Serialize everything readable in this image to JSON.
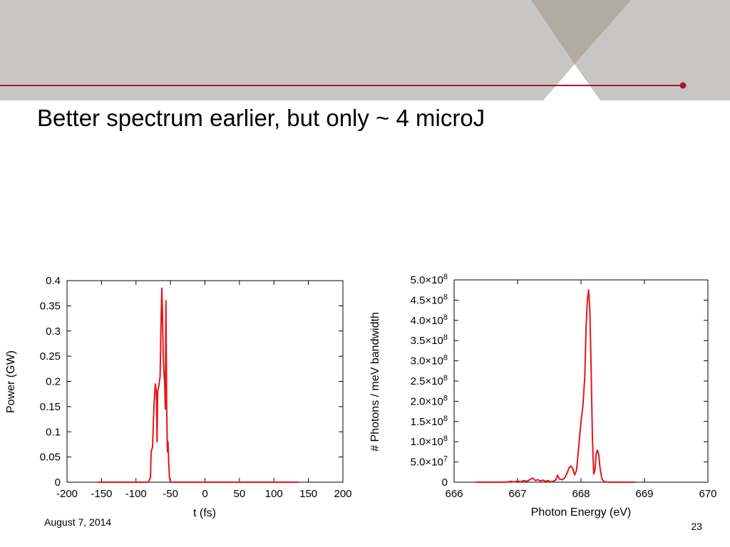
{
  "theme": {
    "accent": "#a6192e",
    "header_gray": "#c8c6c3",
    "header_taupe": "#b2aba1"
  },
  "slide": {
    "title": "Better spectrum earlier, but only ~ 4 microJ",
    "date": "August 7, 2014",
    "page_number": "23"
  },
  "chart_data": [
    {
      "type": "line",
      "xlabel": "t (fs)",
      "ylabel": "Power (GW)",
      "xlim": [
        -200,
        200
      ],
      "ylim": [
        0,
        0.4
      ],
      "x_ticks": [
        -200,
        -150,
        -100,
        -50,
        0,
        50,
        100,
        150,
        200
      ],
      "x_tick_labels": [
        "-200",
        "-150",
        "-100",
        "-50",
        "0",
        "50",
        "100",
        "150",
        "200"
      ],
      "y_ticks": [
        0,
        0.05,
        0.1,
        0.15,
        0.2,
        0.25,
        0.3,
        0.35,
        0.4
      ],
      "y_tick_labels": [
        "0",
        "0.05",
        "0.1",
        "0.15",
        "0.2",
        "0.25",
        "0.3",
        "0.35",
        "0.4"
      ],
      "grid": false,
      "series": [
        {
          "color": "#e3161b",
          "x": [
            -155,
            -100,
            -82,
            -79,
            -78,
            -76,
            -74,
            -72,
            -70.5,
            -69.5,
            -68.5,
            -67,
            -65,
            -63.5,
            -62.5,
            -61.5,
            -60.5,
            -59.5,
            -58.5,
            -57.5,
            -56.5,
            -55.5,
            -54.5,
            -53.5,
            -52.5,
            -51.5,
            -50,
            0,
            50,
            100,
            135
          ],
          "y": [
            0,
            0,
            0,
            0.01,
            0.06,
            0.07,
            0.15,
            0.195,
            0.18,
            0.08,
            0.18,
            0.19,
            0.21,
            0.33,
            0.385,
            0.33,
            0.25,
            0.22,
            0.2,
            0.145,
            0.36,
            0.15,
            0.06,
            0.08,
            0.04,
            0.01,
            0,
            0,
            0,
            0,
            0
          ]
        }
      ]
    },
    {
      "type": "line",
      "xlabel": "Photon Energy (eV)",
      "ylabel": "# Photons / meV bandwidth",
      "xlim": [
        666,
        670
      ],
      "ylim": [
        0,
        500000000
      ],
      "x_ticks": [
        666,
        667,
        668,
        669,
        670
      ],
      "x_tick_labels": [
        "666",
        "667",
        "668",
        "669",
        "670"
      ],
      "y_ticks": [
        0,
        50000000,
        100000000,
        150000000,
        200000000,
        250000000,
        300000000,
        350000000,
        400000000,
        450000000,
        500000000
      ],
      "y_tick_labels": [
        {
          "base": "0",
          "exp": ""
        },
        {
          "base": "5.0×10",
          "exp": "7"
        },
        {
          "base": "1.0×10",
          "exp": "8"
        },
        {
          "base": "1.5×10",
          "exp": "8"
        },
        {
          "base": "2.0×10",
          "exp": "8"
        },
        {
          "base": "2.5×10",
          "exp": "8"
        },
        {
          "base": "3.0×10",
          "exp": "8"
        },
        {
          "base": "3.5×10",
          "exp": "8"
        },
        {
          "base": "4.0×10",
          "exp": "8"
        },
        {
          "base": "4.5×10",
          "exp": "8"
        },
        {
          "base": "5.0×10",
          "exp": "8"
        }
      ],
      "grid": false,
      "series": [
        {
          "color": "#e3161b",
          "x": [
            666.34,
            666.8,
            666.9,
            666.95,
            667.0,
            667.05,
            667.1,
            667.15,
            667.2,
            667.24,
            667.28,
            667.32,
            667.36,
            667.4,
            667.44,
            667.48,
            667.52,
            667.56,
            667.6,
            667.63,
            667.66,
            667.7,
            667.74,
            667.78,
            667.81,
            667.84,
            667.87,
            667.9,
            667.93,
            667.96,
            668.0,
            668.03,
            668.06,
            668.08,
            668.1,
            668.12,
            668.14,
            668.16,
            668.18,
            668.2,
            668.22,
            668.24,
            668.26,
            668.28,
            668.3,
            668.33,
            668.36,
            668.4,
            668.5,
            668.85
          ],
          "y": [
            0,
            0,
            2000000,
            500000,
            3000000,
            1000000,
            4000000,
            2000000,
            7000000,
            10000000,
            4000000,
            6000000,
            3000000,
            5000000,
            2000000,
            4000000,
            1000000,
            2000000,
            5000000,
            17000000,
            8000000,
            6000000,
            10000000,
            22000000,
            35000000,
            40000000,
            34000000,
            18000000,
            30000000,
            80000000,
            150000000,
            190000000,
            260000000,
            380000000,
            450000000,
            475000000,
            420000000,
            280000000,
            110000000,
            20000000,
            30000000,
            72000000,
            79000000,
            68000000,
            35000000,
            8000000,
            2000000,
            500000,
            0,
            0
          ]
        }
      ]
    }
  ]
}
